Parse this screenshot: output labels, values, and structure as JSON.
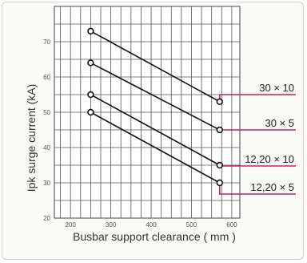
{
  "chart_data": {
    "type": "line",
    "xlabel": "Busbar support clearance ( mm )",
    "ylabel": "Ipk surge current (kA)",
    "xlim": [
      160,
      620
    ],
    "ylim": [
      20,
      80
    ],
    "x_ticks": [
      200,
      300,
      400,
      500,
      600
    ],
    "y_ticks": [
      20,
      30,
      40,
      50,
      60,
      70
    ],
    "grid": true,
    "series": [
      {
        "name": "30 × 10",
        "x": [
          250,
          570
        ],
        "values": [
          73,
          53
        ],
        "color": "#cc1f6a"
      },
      {
        "name": "30 × 5",
        "x": [
          250,
          570
        ],
        "values": [
          64,
          45
        ],
        "color": "#cc1f6a"
      },
      {
        "name": "12,20 × 10",
        "x": [
          250,
          570
        ],
        "values": [
          55,
          35
        ],
        "color": "#cc1f6a"
      },
      {
        "name": "12,20 × 5",
        "x": [
          250,
          570
        ],
        "values": [
          50,
          30
        ],
        "color": "#cc1f6a"
      }
    ]
  }
}
